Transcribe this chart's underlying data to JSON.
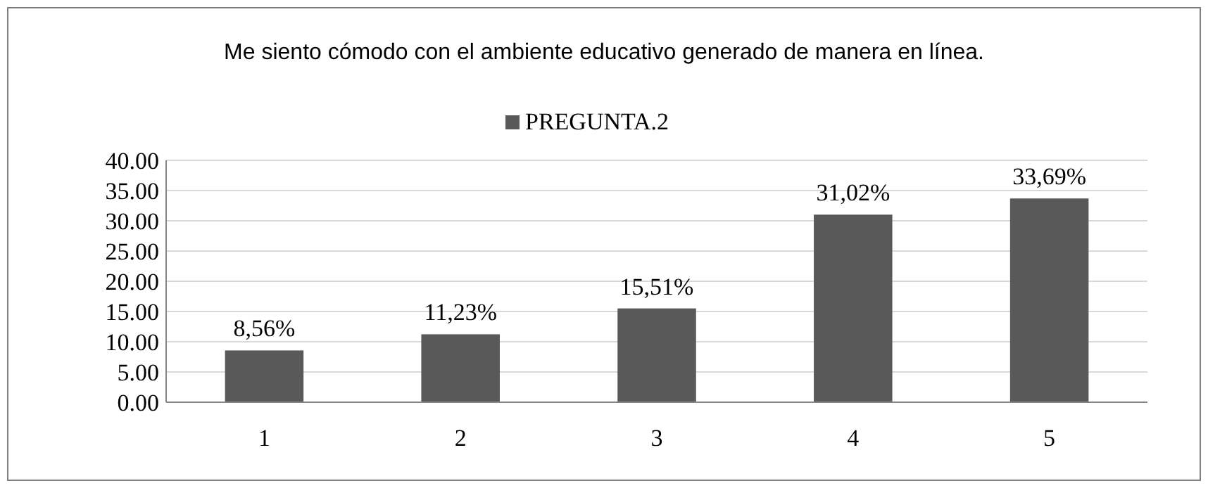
{
  "chart_data": {
    "type": "bar",
    "title": "Me siento cómodo con el ambiente educativo generado de manera en línea.",
    "categories": [
      "1",
      "2",
      "3",
      "4",
      "5"
    ],
    "series": [
      {
        "name": "PREGUNTA.2",
        "color": "#595959",
        "values": [
          8.56,
          11.23,
          15.51,
          31.02,
          33.69
        ],
        "value_labels": [
          "8,56%",
          "11,23%",
          "15,51%",
          "31,02%",
          "33,69%"
        ]
      }
    ],
    "ylim": [
      0,
      40
    ],
    "yticks": [
      {
        "value": 0,
        "label": "0.00"
      },
      {
        "value": 5,
        "label": "5.00"
      },
      {
        "value": 10,
        "label": "10.00"
      },
      {
        "value": 15,
        "label": "15.00"
      },
      {
        "value": 20,
        "label": "20.00"
      },
      {
        "value": 25,
        "label": "25.00"
      },
      {
        "value": 30,
        "label": "30.00"
      },
      {
        "value": 35,
        "label": "35.00"
      },
      {
        "value": 40,
        "label": "40.00"
      }
    ],
    "grid": "y",
    "legend": "top"
  }
}
